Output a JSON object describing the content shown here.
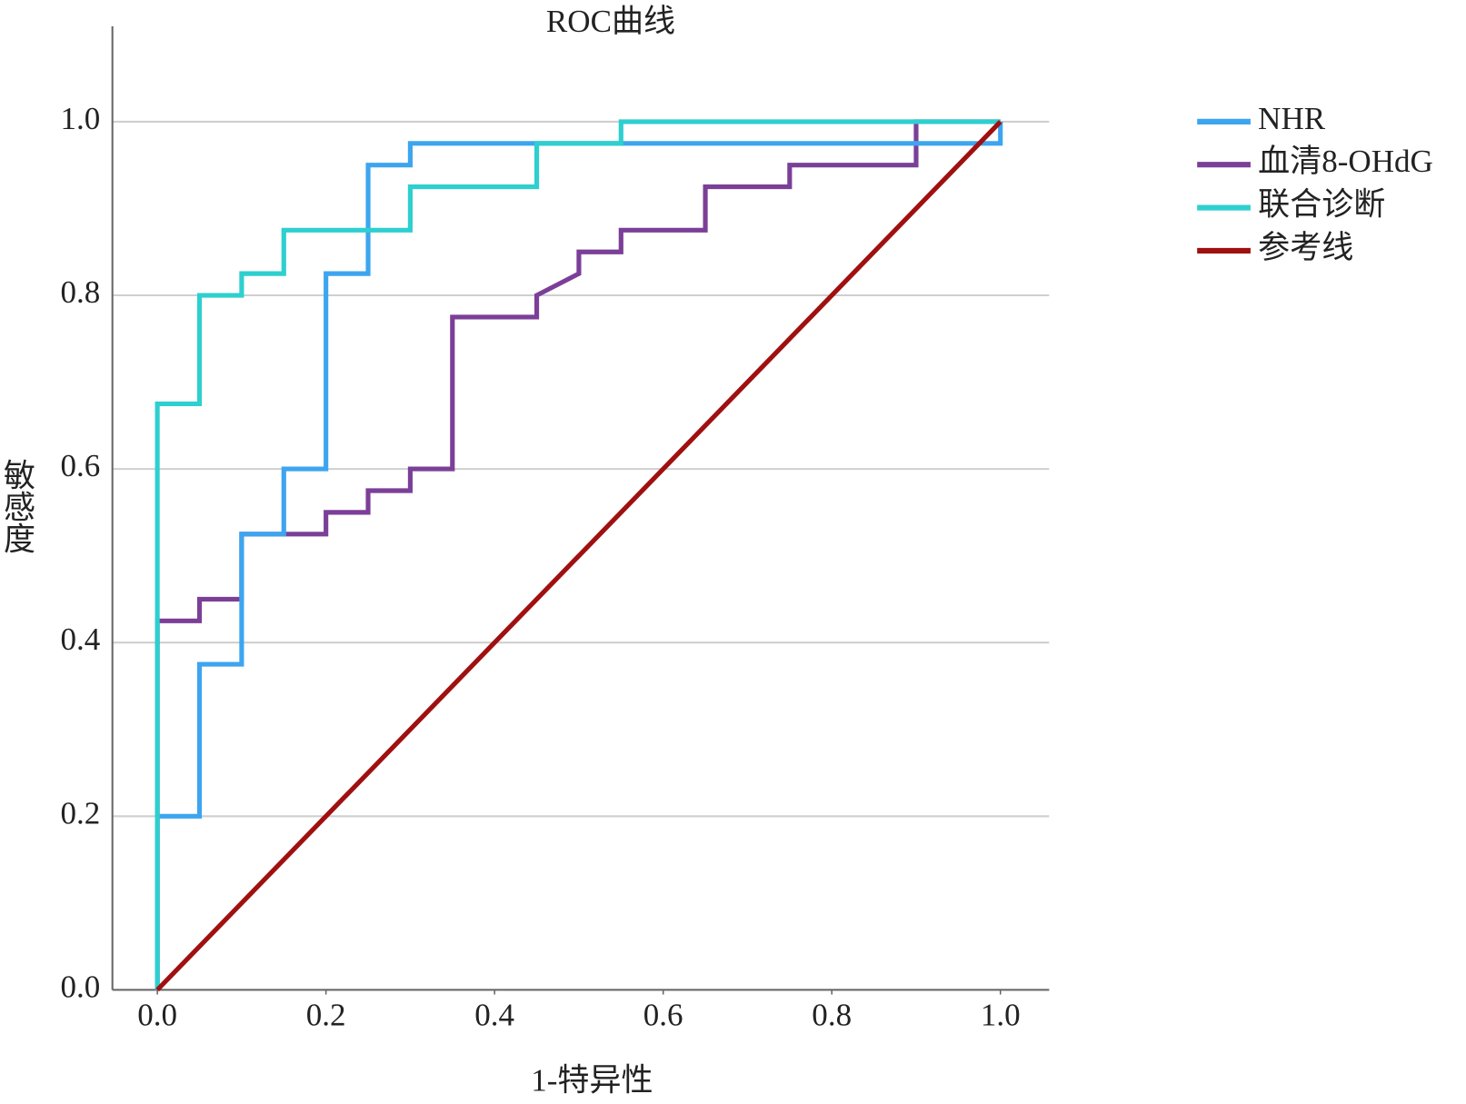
{
  "chart_data": {
    "type": "line",
    "title": "ROC曲线",
    "x_label": "1-特异性",
    "y_label": "敏感度",
    "xlim": [
      -0.0533,
      1.0578
    ],
    "ylim": [
      0,
      1.11
    ],
    "xticks": [
      {
        "value": 0,
        "label": "0.0"
      },
      0.2,
      0.4,
      0.6,
      0.8,
      {
        "value": 1,
        "label": "1.0"
      }
    ],
    "yticks": [
      {
        "value": 0,
        "label": "0.0"
      },
      0.2,
      0.4,
      0.6,
      0.8,
      {
        "value": 1,
        "label": "1.0"
      }
    ],
    "grid": true,
    "legend": "right",
    "series": [
      {
        "name": "NHR",
        "color": "#3da5ef",
        "x": [
          0,
          0,
          0.05,
          0.05,
          0.1,
          0.1,
          0.15,
          0.15,
          0.2,
          0.2,
          0.25,
          0.25,
          0.3,
          0.3,
          1.0,
          1.0
        ],
        "y": [
          0,
          0.2,
          0.2,
          0.375,
          0.375,
          0.525,
          0.525,
          0.6,
          0.6,
          0.825,
          0.825,
          0.95,
          0.95,
          0.975,
          0.975,
          1.0
        ]
      },
      {
        "name": "血清8-OHdG",
        "color": "#7b3f98",
        "x": [
          0,
          0,
          0.05,
          0.05,
          0.1,
          0.1,
          0.2,
          0.2,
          0.25,
          0.25,
          0.3,
          0.3,
          0.35,
          0.35,
          0.45,
          0.45,
          0.5,
          0.5,
          0.55,
          0.55,
          0.65,
          0.65,
          0.75,
          0.75,
          0.9,
          0.9,
          1.0
        ],
        "y": [
          0,
          0.425,
          0.425,
          0.45,
          0.45,
          0.525,
          0.525,
          0.55,
          0.55,
          0.575,
          0.575,
          0.6,
          0.6,
          0.775,
          0.775,
          0.8,
          0.825,
          0.85,
          0.85,
          0.875,
          0.875,
          0.925,
          0.925,
          0.95,
          0.95,
          1.0,
          1.0
        ]
      },
      {
        "name": "联合诊断",
        "color": "#2ecfcf",
        "x": [
          0,
          0,
          0.05,
          0.05,
          0.1,
          0.1,
          0.15,
          0.15,
          0.3,
          0.3,
          0.45,
          0.45,
          0.55,
          0.55,
          1.0
        ],
        "y": [
          0,
          0.675,
          0.675,
          0.8,
          0.8,
          0.825,
          0.825,
          0.875,
          0.875,
          0.925,
          0.925,
          0.975,
          0.975,
          1.0,
          1.0
        ]
      },
      {
        "name": "参考线",
        "color": "#a01010",
        "x": [
          0,
          1
        ],
        "y": [
          0,
          1
        ]
      }
    ]
  }
}
